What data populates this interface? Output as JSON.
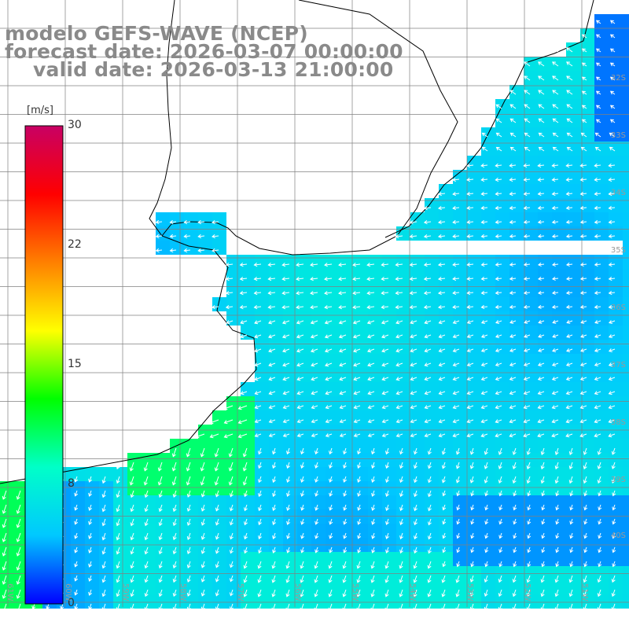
{
  "title": {
    "line1": "modelo GEFS-WAVE (NCEP)",
    "line2": "forecast date: 2026-03-07 00:00:00",
    "line3": "valid date: 2026-03-13 21:00:00"
  },
  "colorbar": {
    "unit": "[m/s]",
    "min": 0,
    "max": 30,
    "ticks": [
      "30",
      "22",
      "15",
      "8",
      "0"
    ],
    "stops": [
      "#0000ff",
      "#00c8ff",
      "#00ffc8",
      "#00ff00",
      "#ffff00",
      "#ff8000",
      "#ff0000",
      "#c80064"
    ]
  },
  "grid": {
    "lat_labels": [
      "32S",
      "33S",
      "34S",
      "35S",
      "36S",
      "37S",
      "38S",
      "39S",
      "40S"
    ],
    "lon_labels": [
      "61W",
      "60W",
      "59W",
      "58W",
      "57W",
      "56W",
      "55W",
      "54W",
      "53W",
      "52W",
      "51W"
    ]
  },
  "colors": {
    "land": "#ffffff",
    "coast": "#000000",
    "grid": "#808080",
    "arrow": "#ffffff",
    "title": "#8a8a8a"
  }
}
